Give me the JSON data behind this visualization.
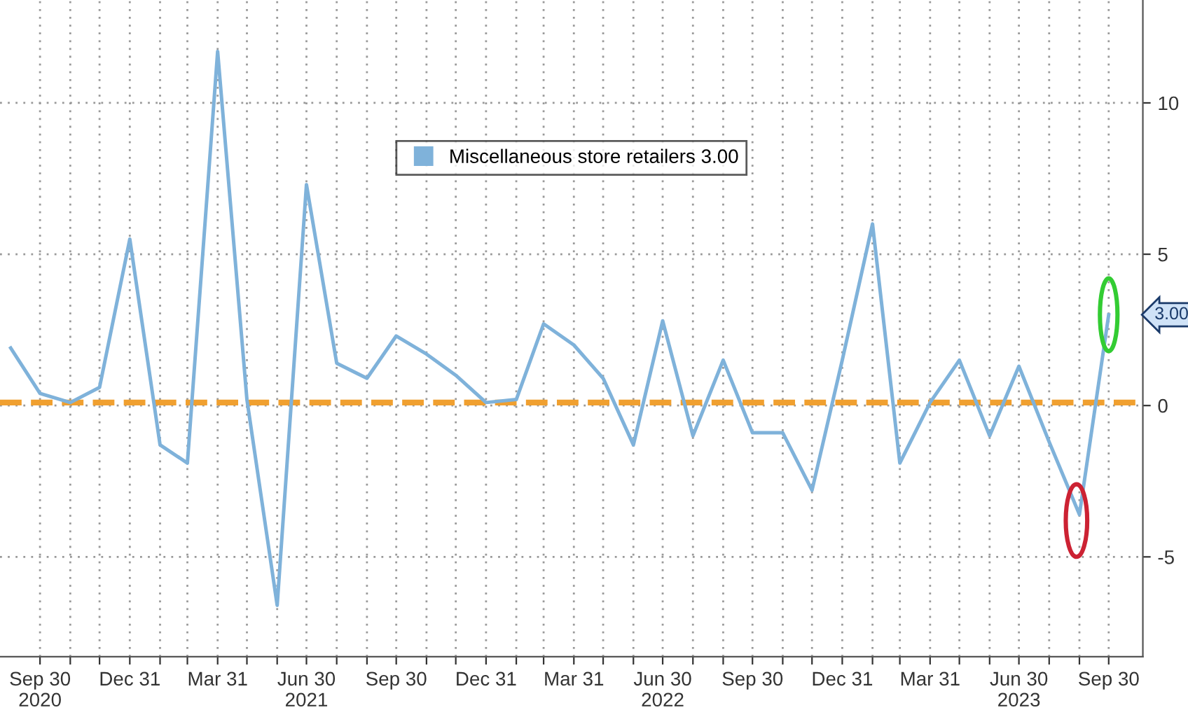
{
  "chart_data": {
    "type": "line",
    "x": [
      "2020-08-31",
      "2020-09-30",
      "2020-10-31",
      "2020-11-30",
      "2020-12-31",
      "2021-01-31",
      "2021-02-28",
      "2021-03-31",
      "2021-04-30",
      "2021-05-31",
      "2021-06-30",
      "2021-07-31",
      "2021-08-31",
      "2021-09-30",
      "2021-10-31",
      "2021-11-30",
      "2021-12-31",
      "2022-01-31",
      "2022-02-28",
      "2022-03-31",
      "2022-04-30",
      "2022-05-31",
      "2022-06-30",
      "2022-07-31",
      "2022-08-31",
      "2022-09-30",
      "2022-10-31",
      "2022-11-30",
      "2022-12-31",
      "2023-01-31",
      "2023-02-28",
      "2023-03-31",
      "2023-04-30",
      "2023-05-31",
      "2023-06-30",
      "2023-07-31",
      "2023-08-31",
      "2023-09-30"
    ],
    "series": [
      {
        "name": "Miscellaneous store retailers 3.00",
        "color": "#7fb2da",
        "values": [
          1.9,
          0.4,
          0.1,
          0.6,
          5.5,
          -1.3,
          -1.9,
          11.7,
          0.2,
          -6.6,
          7.3,
          1.4,
          0.9,
          2.3,
          1.7,
          1.0,
          0.1,
          0.2,
          2.7,
          2.0,
          0.9,
          -1.3,
          2.8,
          -1.0,
          1.5,
          -0.9,
          -0.9,
          -2.8,
          1.5,
          6.0,
          -1.9,
          0.1,
          1.5,
          -1.0,
          1.3,
          -1.2,
          -3.6,
          3.0
        ]
      }
    ],
    "xlim": [
      "2020-08-20",
      "2023-11-04"
    ],
    "xticks": [
      {
        "value": "2020-09-30",
        "label": "Sep 30\n2020"
      },
      {
        "value": "2020-10-31",
        "label": null
      },
      {
        "value": "2020-11-30",
        "label": null
      },
      {
        "value": "2020-12-31",
        "label": "Dec 31"
      },
      {
        "value": "2021-01-31",
        "label": null
      },
      {
        "value": "2021-02-28",
        "label": null
      },
      {
        "value": "2021-03-31",
        "label": "Mar 31"
      },
      {
        "value": "2021-04-30",
        "label": null
      },
      {
        "value": "2021-05-31",
        "label": null
      },
      {
        "value": "2021-06-30",
        "label": "Jun 30\n2021"
      },
      {
        "value": "2021-07-31",
        "label": null
      },
      {
        "value": "2021-08-31",
        "label": null
      },
      {
        "value": "2021-09-30",
        "label": "Sep 30"
      },
      {
        "value": "2021-10-31",
        "label": null
      },
      {
        "value": "2021-11-30",
        "label": null
      },
      {
        "value": "2021-12-31",
        "label": "Dec 31"
      },
      {
        "value": "2022-01-31",
        "label": null
      },
      {
        "value": "2022-02-28",
        "label": null
      },
      {
        "value": "2022-03-31",
        "label": "Mar 31"
      },
      {
        "value": "2022-04-30",
        "label": null
      },
      {
        "value": "2022-05-31",
        "label": null
      },
      {
        "value": "2022-06-30",
        "label": "Jun 30\n2022"
      },
      {
        "value": "2022-07-31",
        "label": null
      },
      {
        "value": "2022-08-31",
        "label": null
      },
      {
        "value": "2022-09-30",
        "label": "Sep 30"
      },
      {
        "value": "2022-10-31",
        "label": null
      },
      {
        "value": "2022-11-30",
        "label": null
      },
      {
        "value": "2022-12-31",
        "label": "Dec 31"
      },
      {
        "value": "2023-01-31",
        "label": null
      },
      {
        "value": "2023-02-28",
        "label": null
      },
      {
        "value": "2023-03-31",
        "label": "Mar 31"
      },
      {
        "value": "2023-04-30",
        "label": null
      },
      {
        "value": "2023-05-31",
        "label": null
      },
      {
        "value": "2023-06-30",
        "label": "Jun 30\n2023"
      },
      {
        "value": "2023-07-31",
        "label": null
      },
      {
        "value": "2023-08-31",
        "label": null
      },
      {
        "value": "2023-09-30",
        "label": "Sep 30"
      }
    ],
    "ylim": [
      -8.3,
      13.4
    ],
    "yticks": [
      -5,
      0,
      5,
      10
    ],
    "ref_lines": [
      {
        "axis": "y",
        "value": 0.1,
        "color": "#f0a030",
        "line_style": "dashed"
      }
    ],
    "annotations": [
      {
        "text": "3.00",
        "x": "2023-09-30",
        "y": 3.0
      }
    ],
    "grid": true,
    "legend": "top",
    "line_style": "solid",
    "marker": "none"
  }
}
